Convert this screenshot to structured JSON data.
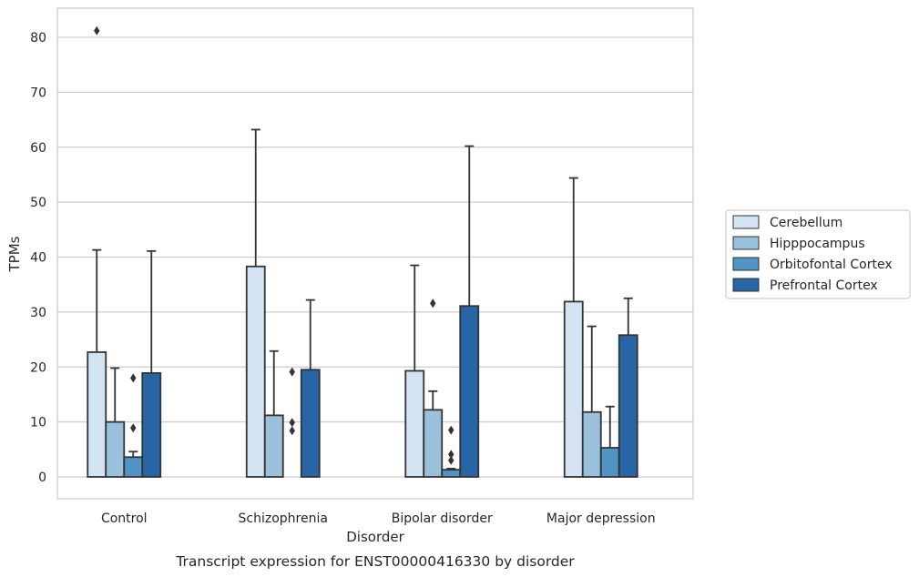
{
  "caption": "Transcript expression for ENST00000416330 by disorder",
  "chart_data": {
    "type": "bar",
    "xlabel": "Disorder",
    "ylabel": "TPMs",
    "ylim": [
      -4,
      85
    ],
    "yticks": [
      0,
      10,
      20,
      30,
      40,
      50,
      60,
      70,
      80
    ],
    "grid": "horizontal",
    "legend_position": "right",
    "categories": [
      "Control",
      "Schizophrenia",
      "Bipolar disorder",
      "Major depression"
    ],
    "series": [
      {
        "name": "Cerebellum",
        "color": "#d3e3f2",
        "values": [
          22.7,
          38.3,
          19.3,
          31.9
        ],
        "whisker_high": [
          41.3,
          63.2,
          38.5,
          54.4
        ],
        "outliers": [
          [
            81.2
          ],
          [],
          [],
          []
        ]
      },
      {
        "name": "Hipppocampus",
        "color": "#9ac1db",
        "values": [
          10.0,
          11.2,
          12.2,
          11.8
        ],
        "whisker_high": [
          19.8,
          22.9,
          15.6,
          27.4
        ],
        "outliers": [
          [],
          [],
          [
            31.6
          ],
          []
        ]
      },
      {
        "name": "Orbitofontal Cortex",
        "color": "#5193c3",
        "values": [
          3.6,
          0.0,
          1.3,
          5.3
        ],
        "whisker_high": [
          4.6,
          0.0,
          1.5,
          12.8
        ],
        "outliers": [
          [
            18.0,
            8.9
          ],
          [
            19.1,
            9.9,
            8.4
          ],
          [
            8.5,
            4.1,
            3.0
          ],
          []
        ]
      },
      {
        "name": "Prefrontal Cortex",
        "color": "#2765a5",
        "values": [
          18.9,
          19.5,
          31.1,
          25.8
        ],
        "whisker_high": [
          41.1,
          32.2,
          60.2,
          32.5
        ],
        "outliers": [
          [],
          [],
          [],
          []
        ]
      }
    ]
  }
}
